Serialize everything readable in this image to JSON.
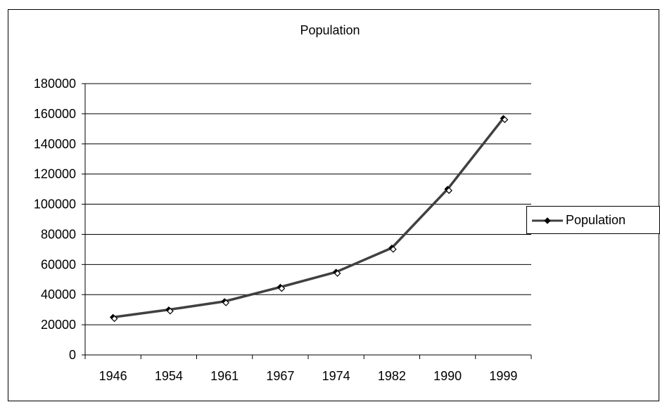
{
  "chart_data": {
    "type": "line",
    "title": "Population",
    "categories": [
      "1946",
      "1954",
      "1961",
      "1967",
      "1974",
      "1982",
      "1990",
      "1999"
    ],
    "series": [
      {
        "name": "Population",
        "values": [
          25000,
          30000,
          35500,
          45000,
          55000,
          71000,
          110000,
          157000
        ]
      }
    ],
    "ylim": [
      0,
      180000
    ],
    "yticks": [
      "0",
      "20000",
      "40000",
      "60000",
      "80000",
      "100000",
      "120000",
      "140000",
      "160000",
      "180000"
    ],
    "grid": true,
    "legend_position": "right",
    "colors": {
      "line": "#404040",
      "marker": "#000000",
      "grid": "#000000"
    }
  }
}
